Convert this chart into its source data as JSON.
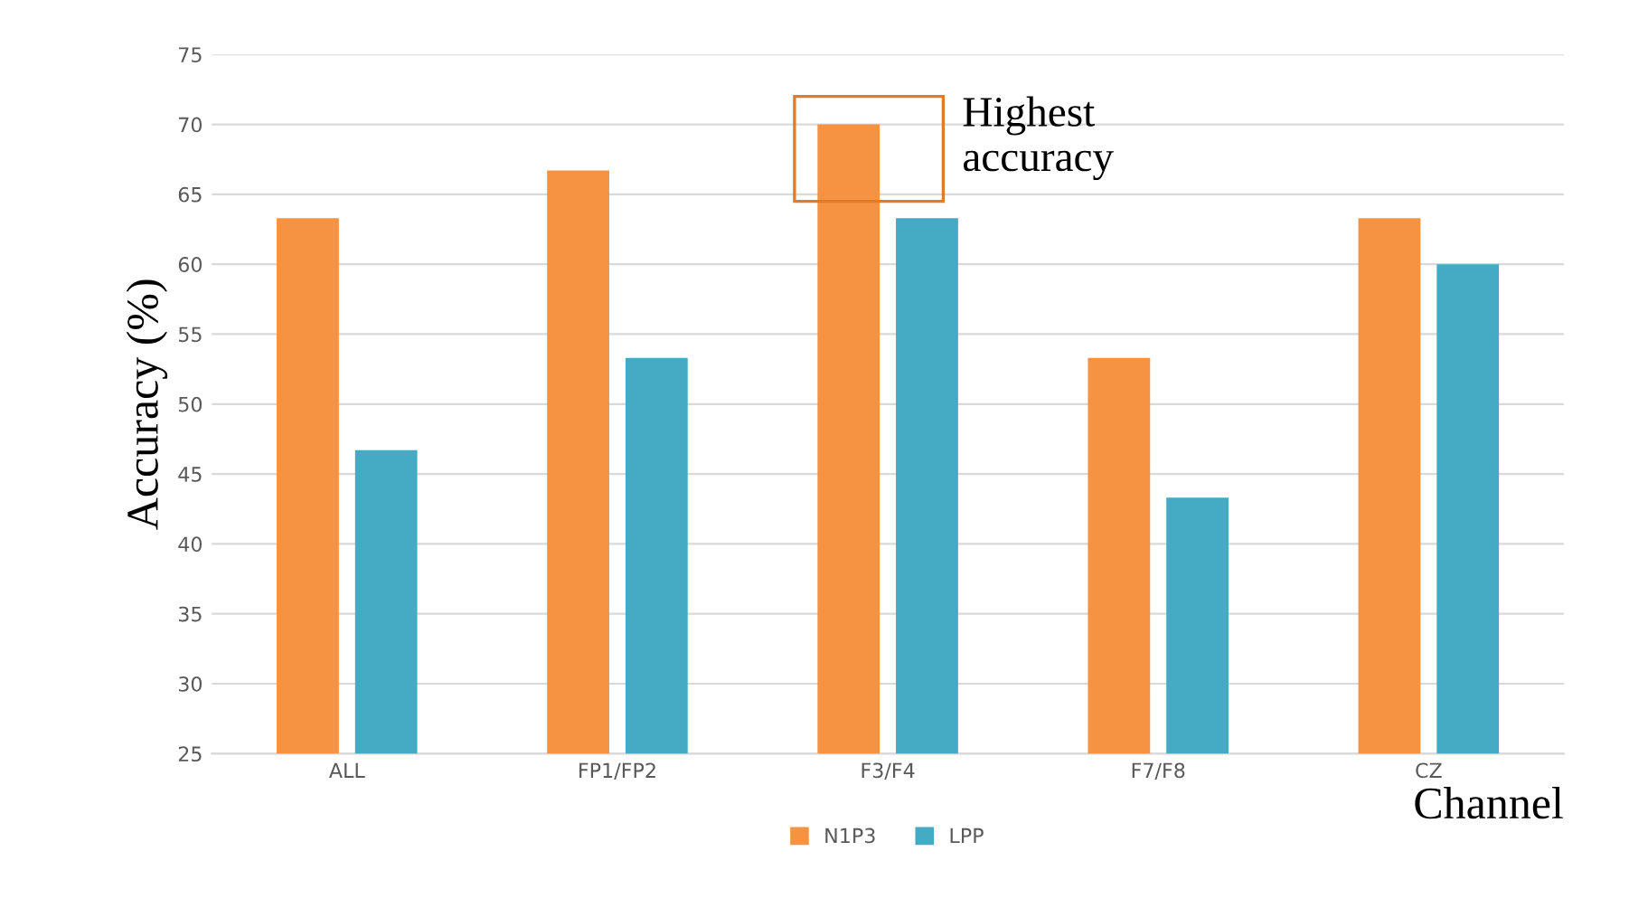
{
  "chart_data": {
    "type": "bar",
    "xlabel": "Channel",
    "ylabel": "Accuracy (%)",
    "categories": [
      "ALL",
      "FP1/FP2",
      "F3/F4",
      "F7/F8",
      "CZ"
    ],
    "series": [
      {
        "name": "N1P3",
        "color": "#f59342",
        "values": [
          63.3,
          66.7,
          70,
          53.3,
          63.3
        ]
      },
      {
        "name": "LPP",
        "color": "#45aac4",
        "values": [
          46.7,
          53.3,
          63.3,
          43.3,
          60
        ]
      }
    ],
    "ylim": [
      25,
      75
    ],
    "yticks": [
      25,
      30,
      35,
      40,
      45,
      50,
      55,
      60,
      65,
      70,
      75
    ],
    "grid": "y",
    "legend": "bottom",
    "annotations": [
      {
        "text": "Highest\naccuracy",
        "x": "F3/F4",
        "y": 70
      }
    ]
  }
}
